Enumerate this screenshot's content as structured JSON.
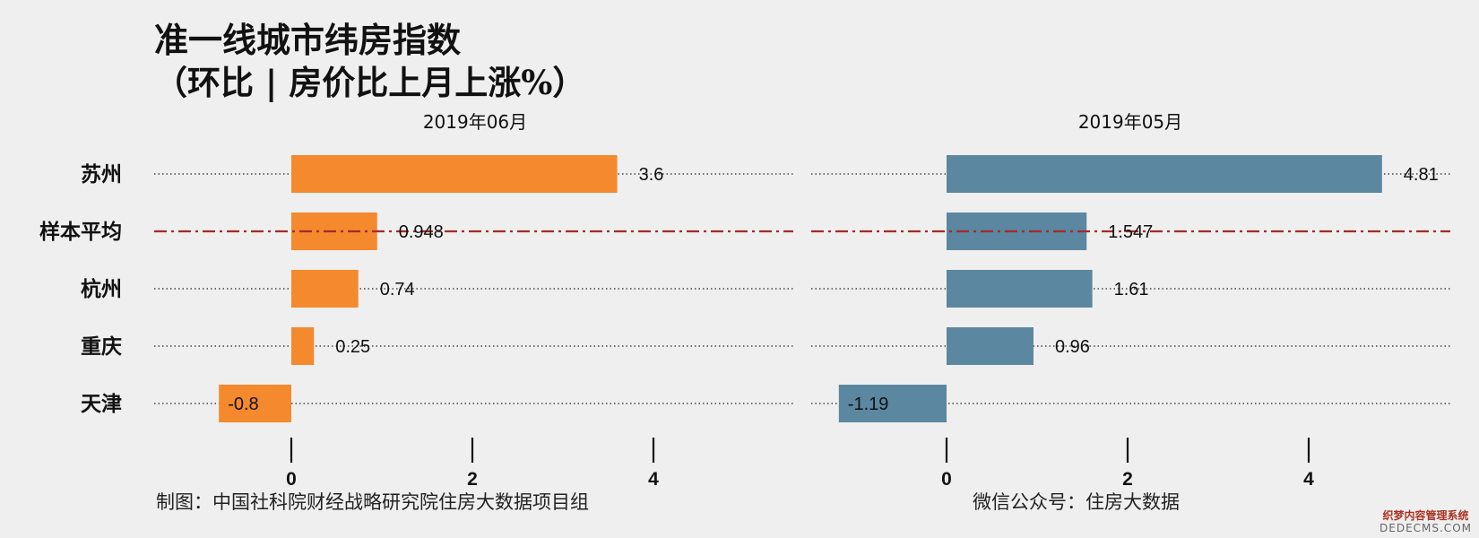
{
  "title": {
    "line1": "准一线城市纬房指数",
    "line2": "（环比 | 房价比上月上涨%）"
  },
  "chart_data": {
    "type": "bar",
    "orientation": "horizontal",
    "categories": [
      "苏州",
      "样本平均",
      "杭州",
      "重庆",
      "天津"
    ],
    "panels": [
      {
        "title": "2019年06月",
        "color": "#f5892d",
        "values": [
          3.6,
          0.948,
          0.74,
          0.25,
          -0.8
        ],
        "labels": [
          "3.6",
          "0.948",
          "0.74",
          "0.25",
          "-0.8"
        ],
        "xticks": [
          0,
          2,
          4
        ]
      },
      {
        "title": "2019年05月",
        "color": "#5b87a0",
        "values": [
          4.81,
          1.547,
          1.61,
          0.96,
          -1.19
        ],
        "labels": [
          "4.81",
          "1.547",
          "1.61",
          "0.96",
          "-1.19"
        ],
        "xticks": [
          0,
          2,
          4
        ]
      }
    ],
    "reference_category": "样本平均",
    "reference_line_color": "#a52a2a",
    "dotted_guides": true
  },
  "footer": {
    "left": "制图：中国社科院财经战略研究院住房大数据项目组",
    "right": "微信公众号：住房大数据"
  },
  "watermark": {
    "line1": "织梦内容管理系统",
    "line2": "DEDECMS.COM"
  }
}
